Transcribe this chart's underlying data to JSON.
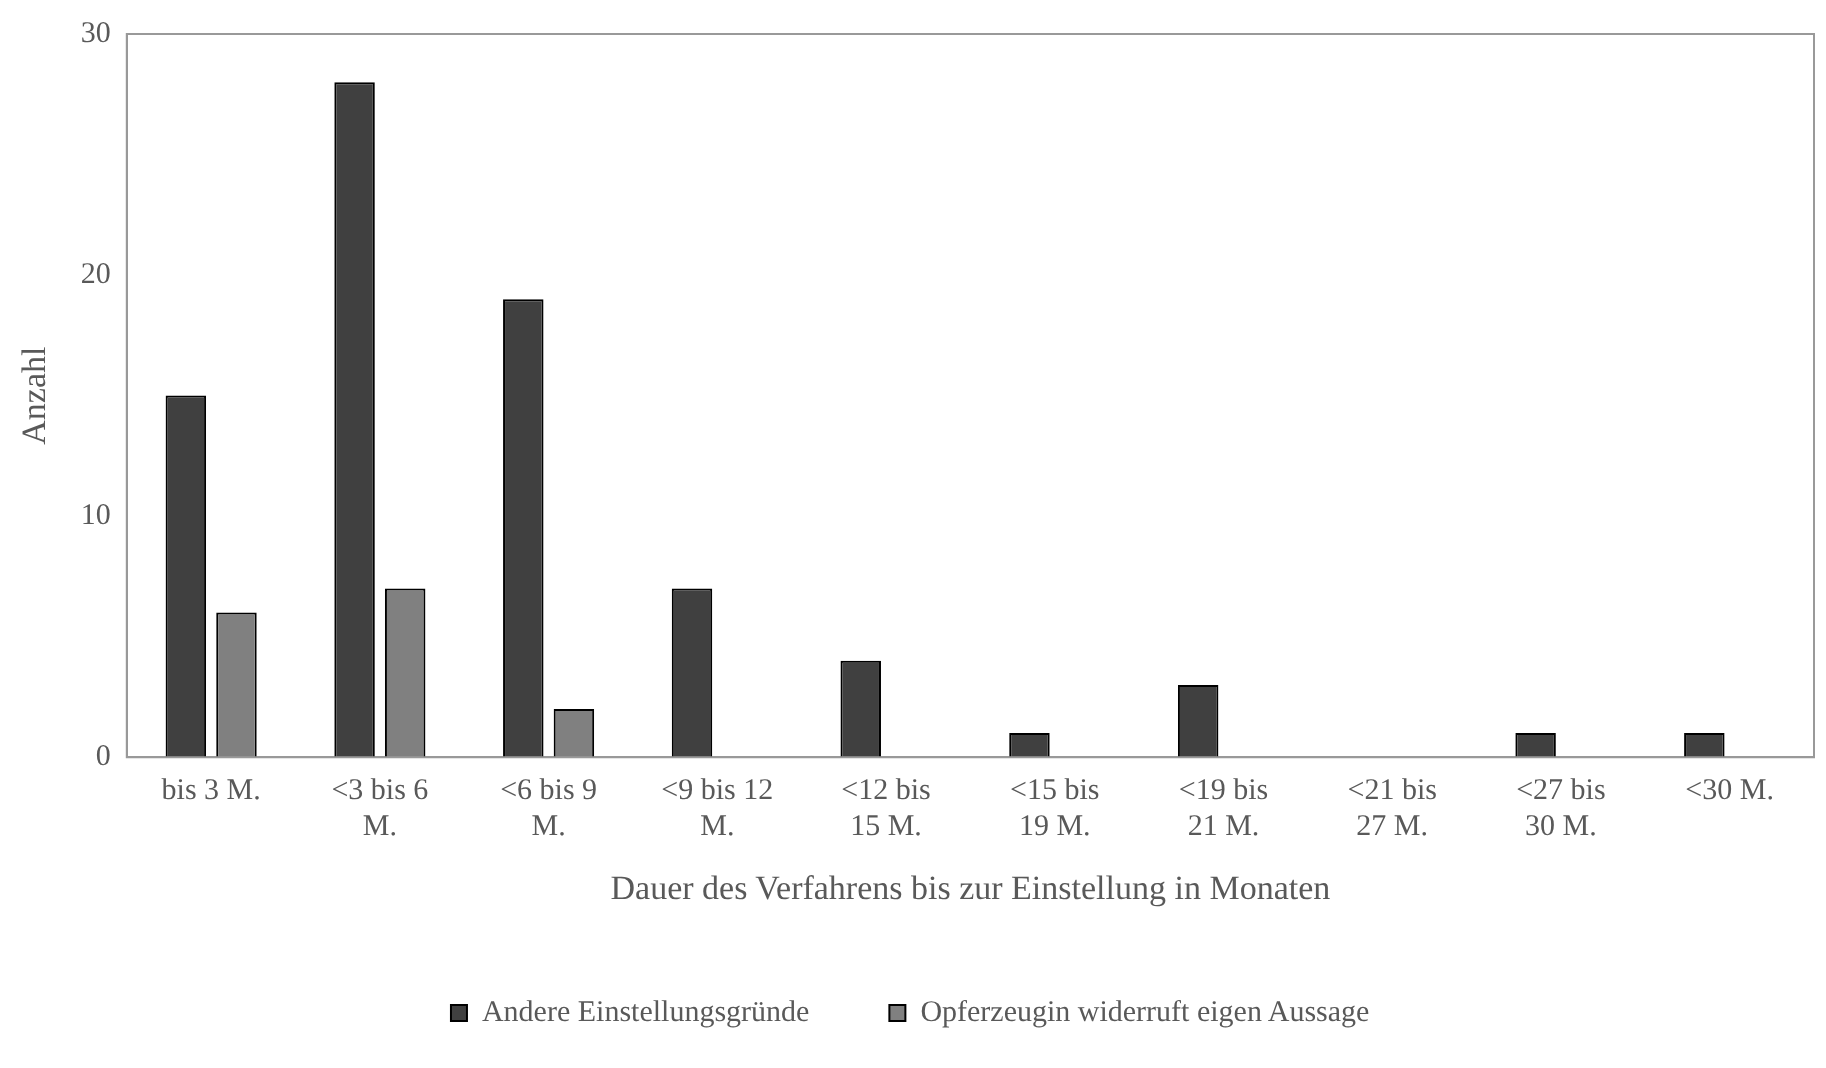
{
  "chart_data": {
    "type": "bar",
    "xlabel": "Dauer des Verfahrens bis zur Einstellung in Monaten",
    "ylabel": "Anzahl",
    "categories": [
      "bis 3 M.",
      "<3 bis 6 M.",
      "<6 bis 9 M.",
      "<9 bis 12 M.",
      "<12 bis 15 M.",
      "<15 bis 19 M.",
      "<19 bis 21 M.",
      "<21 bis 27 M.",
      "<27 bis 30 M.",
      "<30 M."
    ],
    "series": [
      {
        "name": "Andere Einstellungsgründe",
        "color": "#404040",
        "values": [
          15,
          28,
          19,
          7,
          4,
          1,
          3,
          0,
          1,
          1
        ]
      },
      {
        "name": "Opferzeugin widerruft eigen Aussage",
        "color": "#808080",
        "values": [
          6,
          7,
          2,
          0,
          0,
          0,
          0,
          0,
          0,
          0
        ]
      }
    ],
    "ylim": [
      0,
      30
    ],
    "yticks": [
      0,
      10,
      20,
      30
    ],
    "grid": false,
    "legend": "bottom"
  }
}
